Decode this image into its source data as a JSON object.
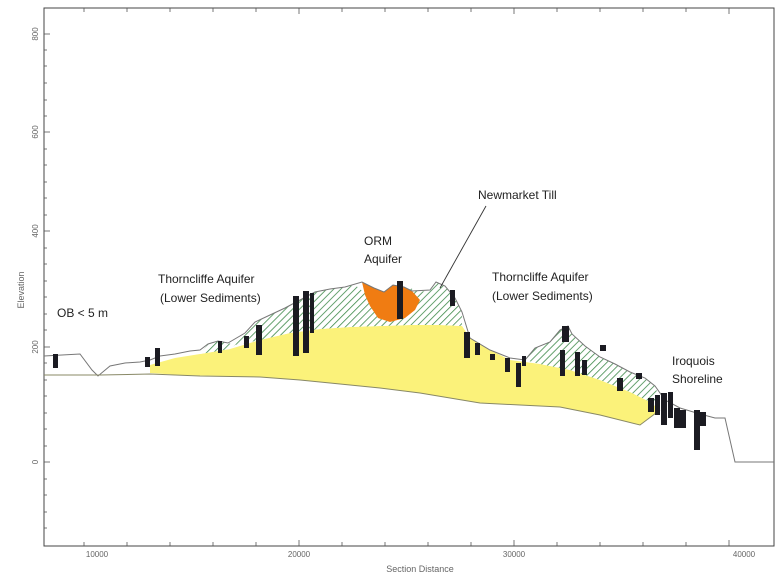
{
  "figure": {
    "x_axis_title": "Section Distance",
    "y_axis_title": "Elevation"
  },
  "x_ticks": [
    "10000",
    "20000",
    "30000",
    "40000"
  ],
  "y_ticks": [
    "800",
    "600",
    "400",
    "200",
    "0"
  ],
  "labels": {
    "ob": "OB < 5 m",
    "thorncliffe_left_1": "Thorncliffe Aquifer",
    "thorncliffe_left_2": "(Lower Sediments)",
    "orm_1": "ORM",
    "orm_2": "Aquifer",
    "newmarket": "Newmarket Till",
    "thorncliffe_right_1": "Thorncliffe Aquifer",
    "thorncliffe_right_2": "(Lower Sediments)",
    "iroquois_1": "Iroquois",
    "iroquois_2": "Shoreline"
  },
  "colors": {
    "lower_sediments": "#fbf27a",
    "orm_aquifer": "#f07c12",
    "newmarket_till_hatch": "#3e8a4a",
    "boreholes": "#1b1b22",
    "ground_line": "#777777"
  }
}
